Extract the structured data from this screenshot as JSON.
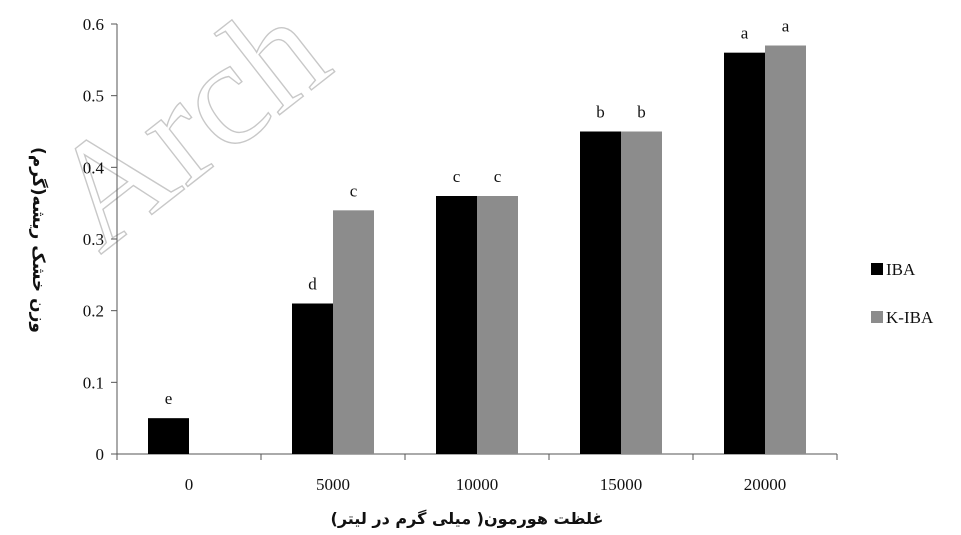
{
  "watermark": "Arch",
  "chart_data": {
    "type": "bar",
    "title": "",
    "xlabel": "غلظت هورمون( میلی گرم در لیتر)",
    "ylabel": "وزن خشک ریشه(گرم)",
    "categories": [
      "0",
      "5000",
      "10000",
      "15000",
      "20000"
    ],
    "ylim": [
      0,
      0.6
    ],
    "yticks": [
      "0",
      "0.1",
      "0.2",
      "0.3",
      "0.4",
      "0.5",
      "0.6"
    ],
    "grid": false,
    "legend_position": "right",
    "series": [
      {
        "name": "IBA",
        "color": "#000000",
        "values": [
          0.05,
          0.21,
          0.36,
          0.45,
          0.56
        ],
        "labels": [
          "e",
          "d",
          "c",
          "b",
          "a"
        ]
      },
      {
        "name": "K-IBA",
        "color": "#8c8c8c",
        "values": [
          0,
          0.34,
          0.36,
          0.45,
          0.57
        ],
        "labels": [
          "",
          "c",
          "c",
          "b",
          "a"
        ]
      }
    ]
  }
}
